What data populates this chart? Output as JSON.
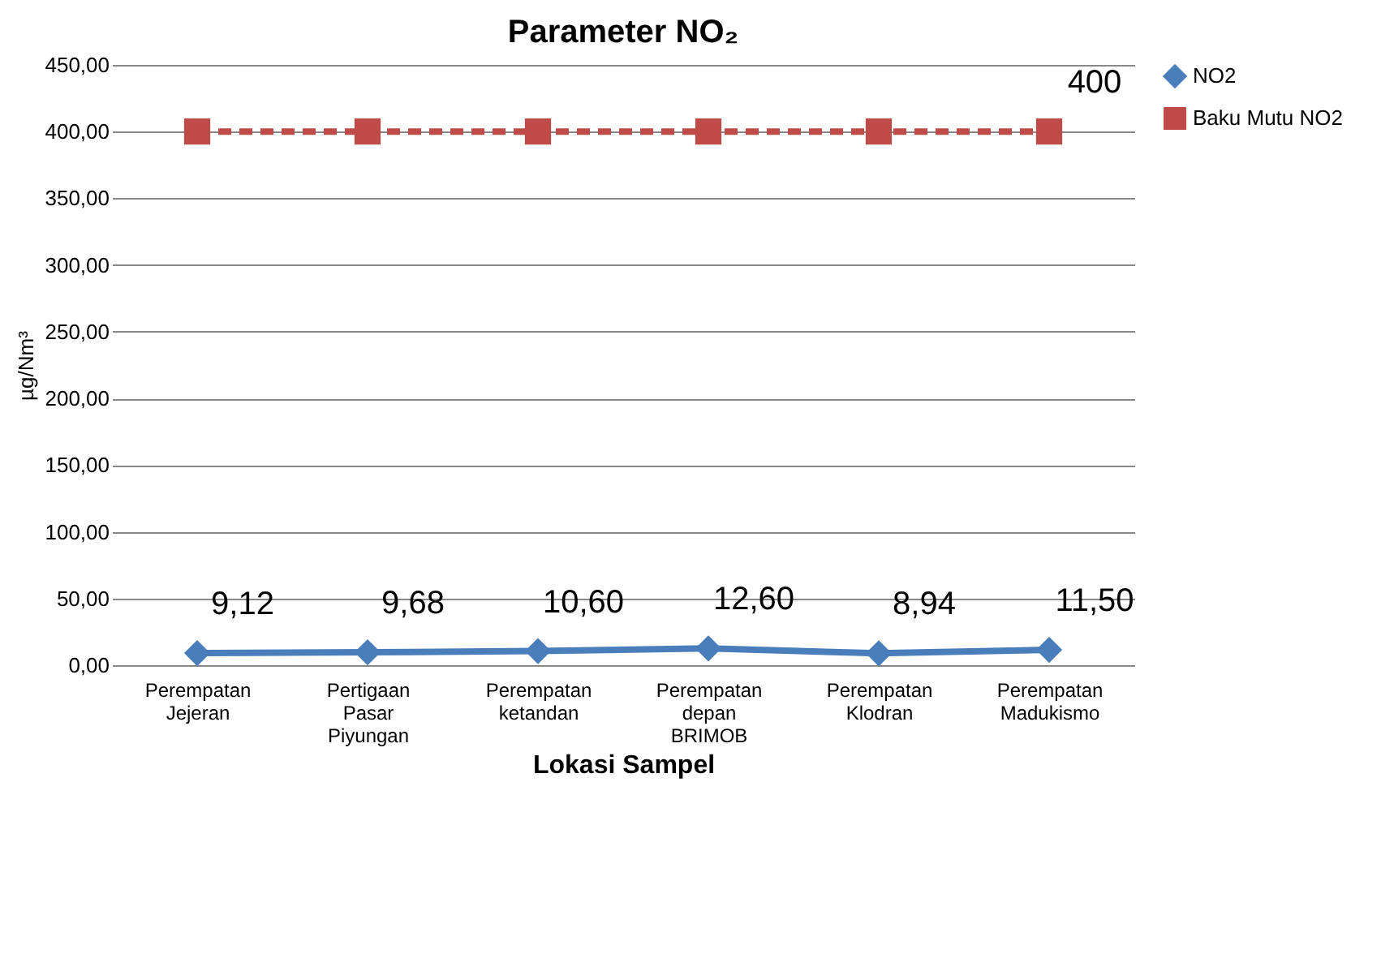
{
  "chart_data": {
    "type": "line",
    "title": "Parameter NO₂",
    "xlabel": "Lokasi Sampel",
    "ylabel": "µg/Nm³",
    "categories": [
      "Perempatan Jejeran",
      "Pertigaan Pasar Piyungan",
      "Perempatan ketandan",
      "Perempatan depan BRIMOB",
      "Perempatan Klodran",
      "Perempatan Madukismo"
    ],
    "series": [
      {
        "name": "NO2",
        "color": "#4a7ebb",
        "marker": "diamond",
        "line_style": "solid",
        "values": [
          9.12,
          9.68,
          10.6,
          12.6,
          8.94,
          11.5
        ],
        "value_labels": [
          "9,12",
          "9,68",
          "10,60",
          "12,60",
          "8,94",
          "11,50"
        ]
      },
      {
        "name": "Baku Mutu NO2",
        "color": "#be4b48",
        "marker": "square",
        "line_style": "dashed",
        "values": [
          400,
          400,
          400,
          400,
          400,
          400
        ],
        "value_labels": [
          null,
          null,
          null,
          null,
          null,
          "400"
        ]
      }
    ],
    "ylim": [
      0,
      450
    ],
    "yticks": [
      {
        "value": 0,
        "label": "0,00"
      },
      {
        "value": 50,
        "label": "50,00"
      },
      {
        "value": 100,
        "label": "100,00"
      },
      {
        "value": 150,
        "label": "150,00"
      },
      {
        "value": 200,
        "label": "200,00"
      },
      {
        "value": 250,
        "label": "250,00"
      },
      {
        "value": 300,
        "label": "300,00"
      },
      {
        "value": 350,
        "label": "350,00"
      },
      {
        "value": 400,
        "label": "400,00"
      },
      {
        "value": 450,
        "label": "450,00"
      }
    ],
    "grid": "y",
    "legend": "right"
  }
}
